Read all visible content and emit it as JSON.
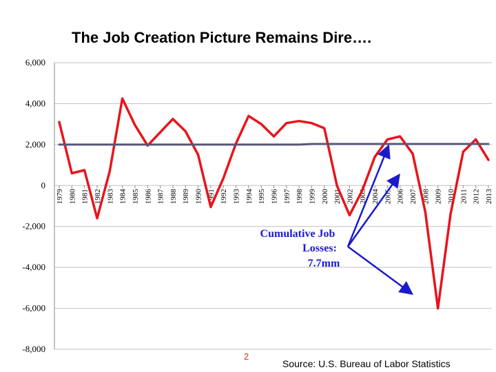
{
  "slide": {
    "title": "The Job Creation Picture Remains Dire….",
    "page_number": "2",
    "source": "Source: U.S. Bureau of Labor Statistics"
  },
  "colors": {
    "job_line": "#e8141b",
    "baseline": "#55557a",
    "annotation": "#1a1acc",
    "grid": "#c0c0c0",
    "axis": "#888888"
  },
  "chart_data": {
    "type": "line",
    "title": "The Job Creation Picture Remains Dire….",
    "xlabel": "",
    "ylabel": "",
    "ylim": [
      -8000,
      6000
    ],
    "yticks": [
      6000,
      4000,
      2000,
      0,
      -2000,
      -4000,
      -6000,
      -8000
    ],
    "ytick_labels": [
      "6,000",
      "4,000",
      "2,000",
      "0",
      "-2,000",
      "-4,000",
      "-6,000",
      "-8,000"
    ],
    "grid": true,
    "categories": [
      "1979",
      "1980",
      "1981",
      "1982",
      "1983",
      "1984",
      "1985",
      "1986",
      "1987",
      "1988",
      "1989",
      "1990",
      "1991",
      "1992",
      "1993",
      "1994",
      "1995",
      "1996",
      "1997",
      "1998",
      "1999",
      "2000",
      "2001",
      "2002",
      "2003",
      "2004",
      "2005",
      "2006",
      "2007",
      "2008",
      "2009",
      "2010",
      "2011",
      "2012",
      "2013"
    ],
    "series": [
      {
        "name": "",
        "role": "annual job creation",
        "color": "#e8141b",
        "values": [
          3100,
          600,
          750,
          -1600,
          700,
          4250,
          2950,
          1950,
          2600,
          3250,
          2650,
          1500,
          -1050,
          350,
          2050,
          3400,
          3000,
          2400,
          3050,
          3150,
          3050,
          2800,
          0,
          -1450,
          -250,
          1400,
          2250,
          2400,
          1550,
          -1300,
          -6000,
          -1400,
          1650,
          2250,
          1250
        ]
      },
      {
        "name": "",
        "role": "reference level",
        "color": "#55557a",
        "values": [
          2000,
          2000,
          2000,
          2000,
          2000,
          2000,
          2000,
          2000,
          2000,
          2000,
          2000,
          2000,
          2000,
          2000,
          2000,
          2000,
          2000,
          2000,
          2000,
          2000,
          2030,
          2030,
          2030,
          2030,
          2030,
          2030,
          2030,
          2030,
          2030,
          2030,
          2030,
          2030,
          2030,
          2030,
          2030
        ]
      }
    ],
    "annotation": {
      "lines": [
        "Cumulative Job",
        "Losses:",
        "7.7mm"
      ]
    }
  }
}
